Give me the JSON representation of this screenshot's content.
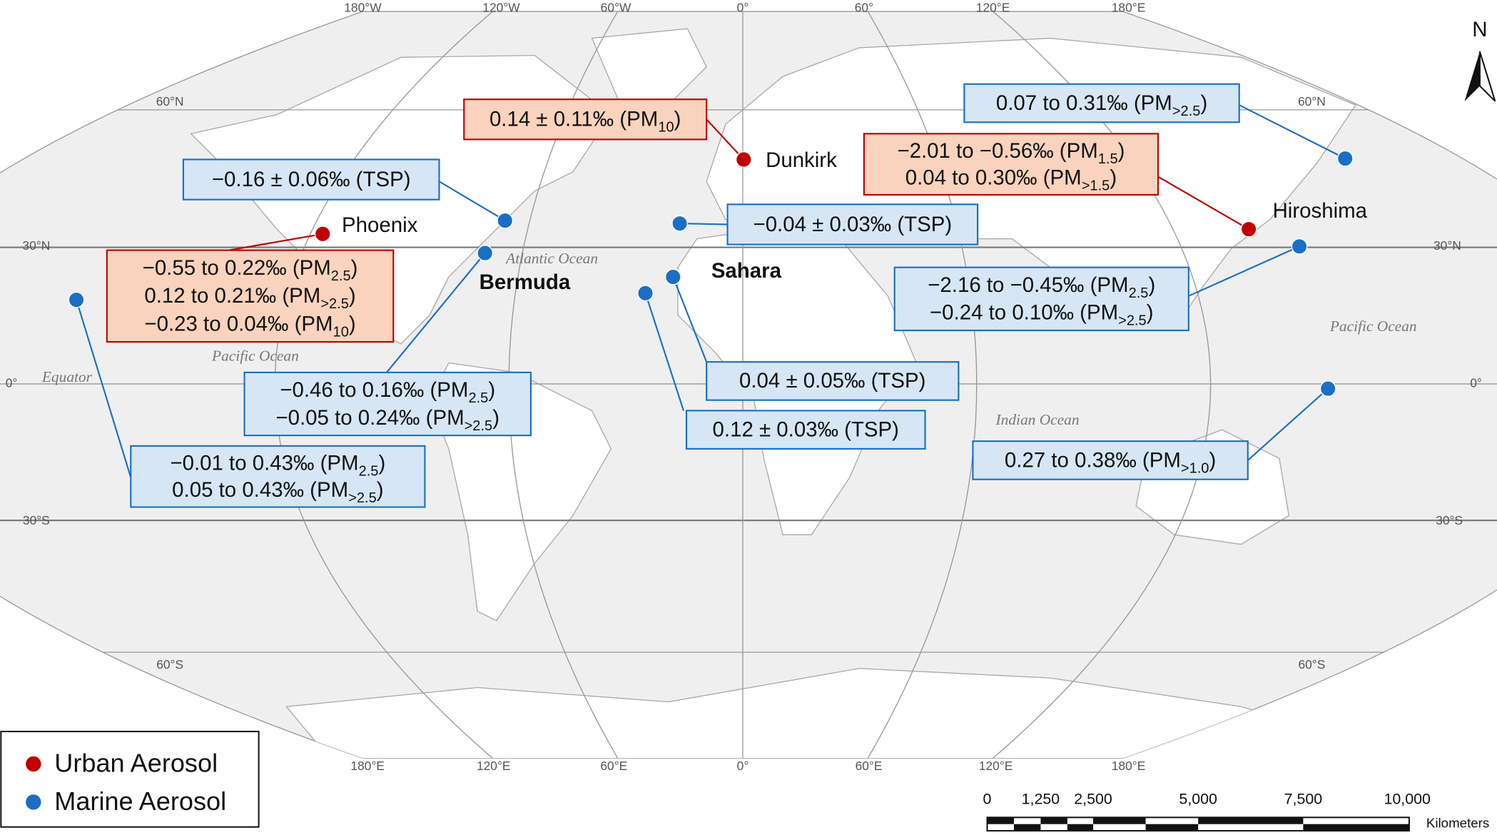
{
  "graticule": {
    "top": [
      "180°W",
      "120°W",
      "60°W",
      "0°",
      "60°",
      "120°E",
      "180°E"
    ],
    "bottom": [
      "180°E",
      "120°E",
      "60°E",
      "0°",
      "60°E",
      "120°E",
      "180°E"
    ],
    "left": [
      "60°N",
      "30°N",
      "0°",
      "30°S",
      "60°S"
    ],
    "right": [
      "60°N",
      "30°N",
      "0°",
      "30°S",
      "60°S"
    ]
  },
  "oceans": [
    "Atlantic Ocean",
    "Pacific Ocean",
    "Pacific Ocean",
    "Indian Ocean",
    "Equator"
  ],
  "places": [
    "Dunkirk",
    "Phoenix",
    "Hiroshima",
    "Bermuda",
    "Sahara"
  ],
  "annotations": [
    {
      "color": "#c00000",
      "lines": [
        {
          "text": "0.14 ± 0.11‰ (PM",
          "sub": "10",
          "end": ")"
        }
      ]
    },
    {
      "color": "#1a6fc4",
      "lines": [
        {
          "text": "−0.16 ± 0.06‰ (TSP)"
        }
      ]
    },
    {
      "color": "#c00000",
      "lines": [
        {
          "text": "−0.55 to 0.22‰ (PM",
          "sub": "2.5",
          "end": ")"
        },
        {
          "text": "0.12 to 0.21‰ (PM",
          "sub": ">2.5",
          "end": ")"
        },
        {
          "text": "−0.23 to 0.04‰ (PM",
          "sub": "10",
          "end": ")"
        }
      ]
    },
    {
      "color": "#1a6fc4",
      "lines": [
        {
          "text": "−0.46 to 0.16‰ (PM",
          "sub": "2.5",
          "end": ")"
        },
        {
          "text": "−0.05 to 0.24‰ (PM",
          "sub": ">2.5",
          "end": ")"
        }
      ]
    },
    {
      "color": "#1a6fc4",
      "lines": [
        {
          "text": "−0.01 to 0.43‰ (PM",
          "sub": "2.5",
          "end": ")"
        },
        {
          "text": "0.05 to 0.43‰ (PM",
          "sub": ">2.5",
          "end": ")"
        }
      ]
    },
    {
      "color": "#1a6fc4",
      "lines": [
        {
          "text": "−0.04 ± 0.03‰ (TSP)"
        }
      ]
    },
    {
      "color": "#1a6fc4",
      "lines": [
        {
          "text": "0.04 ± 0.05‰ (TSP)"
        }
      ]
    },
    {
      "color": "#1a6fc4",
      "lines": [
        {
          "text": "0.12 ± 0.03‰ (TSP)"
        }
      ]
    },
    {
      "color": "#1a6fc4",
      "lines": [
        {
          "text": "0.07 to 0.31‰ (PM",
          "sub": ">2.5",
          "end": ")"
        }
      ]
    },
    {
      "color": "#c00000",
      "lines": [
        {
          "text": "−2.01 to −0.56‰ (PM",
          "sub": "1.5",
          "end": ")"
        },
        {
          "text": "0.04 to 0.30‰ (PM",
          "sub": ">1.5",
          "end": ")"
        }
      ]
    },
    {
      "color": "#1a6fc4",
      "lines": [
        {
          "text": "−2.16 to −0.45‰ (PM",
          "sub": "2.5",
          "end": ")"
        },
        {
          "text": "−0.24 to 0.10‰ (PM",
          "sub": ">2.5",
          "end": ")"
        }
      ]
    },
    {
      "color": "#1a6fc4",
      "lines": [
        {
          "text": "0.27 to 0.38‰ (PM",
          "sub": ">1.0",
          "end": ")"
        }
      ]
    }
  ],
  "legend": [
    {
      "label": "Urban Aerosol",
      "color": "#c00000"
    },
    {
      "label": "Marine Aerosol",
      "color": "#1a6fc4"
    }
  ],
  "scale": {
    "ticks": [
      "0",
      "1,250",
      "2,500",
      "5,000",
      "7,500",
      "10,000"
    ],
    "unit": "Kilometers"
  },
  "north": "N"
}
